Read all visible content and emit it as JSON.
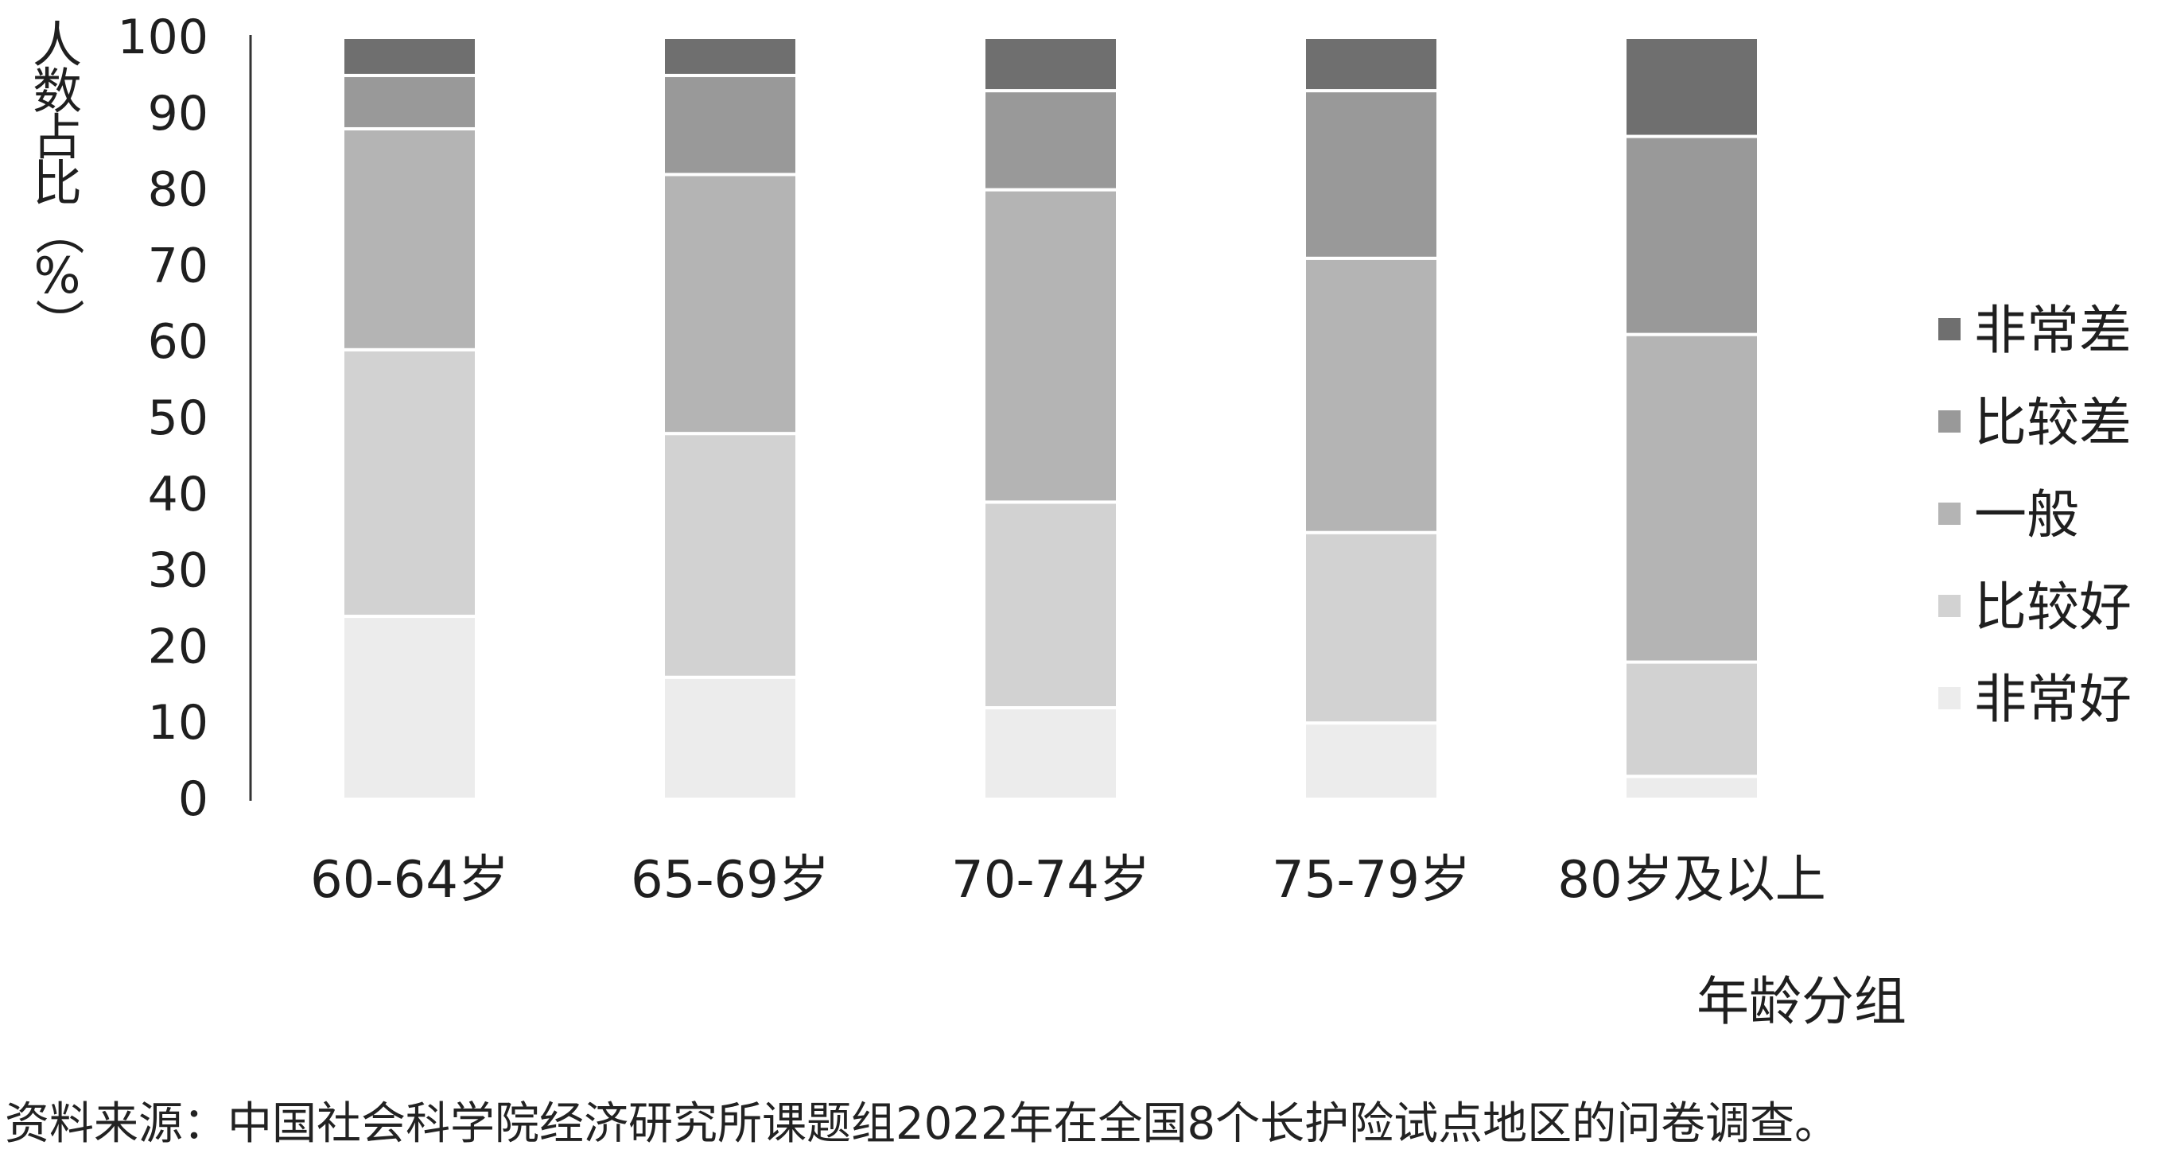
{
  "chart_data": {
    "type": "bar",
    "stacked": true,
    "title": "",
    "categories": [
      "60-64岁",
      "65-69岁",
      "70-74岁",
      "75-79岁",
      "80岁及以上"
    ],
    "series": [
      {
        "name": "非常好",
        "color": "#ececec",
        "values": [
          24,
          16,
          12,
          10,
          3
        ]
      },
      {
        "name": "比较好",
        "color": "#d2d2d2",
        "values": [
          35,
          32,
          27,
          25,
          15
        ]
      },
      {
        "name": "一般",
        "color": "#b4b4b4",
        "values": [
          29,
          34,
          41,
          36,
          43
        ]
      },
      {
        "name": "比较差",
        "color": "#999999",
        "values": [
          7,
          13,
          13,
          22,
          26
        ]
      },
      {
        "name": "非常差",
        "color": "#6f6f6f",
        "values": [
          5,
          5,
          7,
          7,
          13
        ]
      }
    ],
    "xlabel": "年龄分组",
    "ylabel": "人数占比（%）",
    "ylim": [
      0,
      100
    ],
    "yticks": [
      0,
      10,
      20,
      30,
      40,
      50,
      60,
      70,
      80,
      90,
      100
    ],
    "grid": false,
    "legend_position": "right",
    "legend_order": [
      "非常差",
      "比较差",
      "一般",
      "比较好",
      "非常好"
    ]
  },
  "source_note": "资料来源：中国社会科学院经济研究所课题组2022年在全国8个长护险试点地区的问卷调查。"
}
